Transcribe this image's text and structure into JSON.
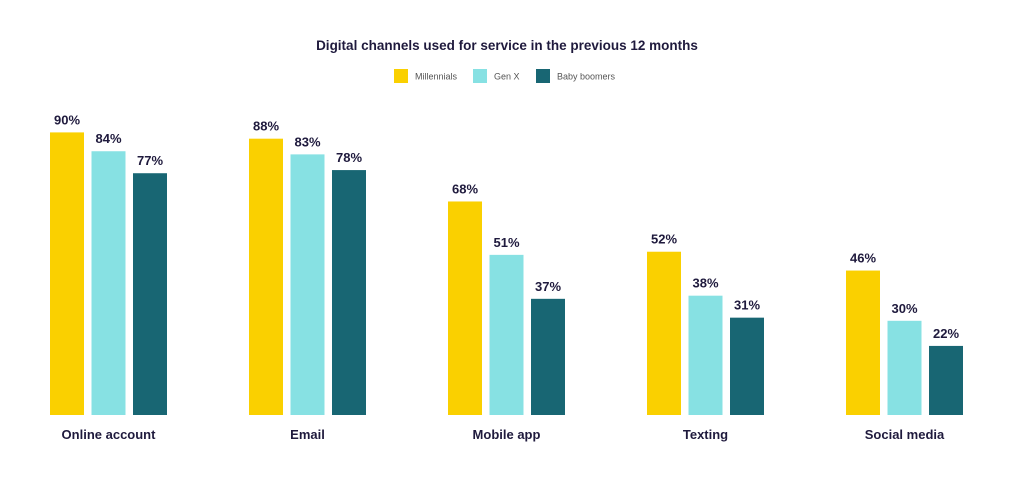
{
  "colors": {
    "text": "#1f1a3d",
    "legend_text": "#555555"
  },
  "chart_data": {
    "type": "bar",
    "title": "Digital channels used for service in the previous 12 months",
    "categories": [
      "Online account",
      "Email",
      "Mobile app",
      "Texting",
      "Social media"
    ],
    "series": [
      {
        "name": "Millennials",
        "color": "#fad000",
        "values": [
          90,
          88,
          68,
          52,
          46
        ]
      },
      {
        "name": "Gen X",
        "color": "#87e1e3",
        "values": [
          84,
          83,
          51,
          38,
          30
        ]
      },
      {
        "name": "Baby boomers",
        "color": "#186673",
        "values": [
          77,
          78,
          37,
          31,
          22
        ]
      }
    ],
    "value_suffix": "%",
    "ylim": [
      0,
      100
    ],
    "grid": false,
    "legend_position": "top-center"
  }
}
